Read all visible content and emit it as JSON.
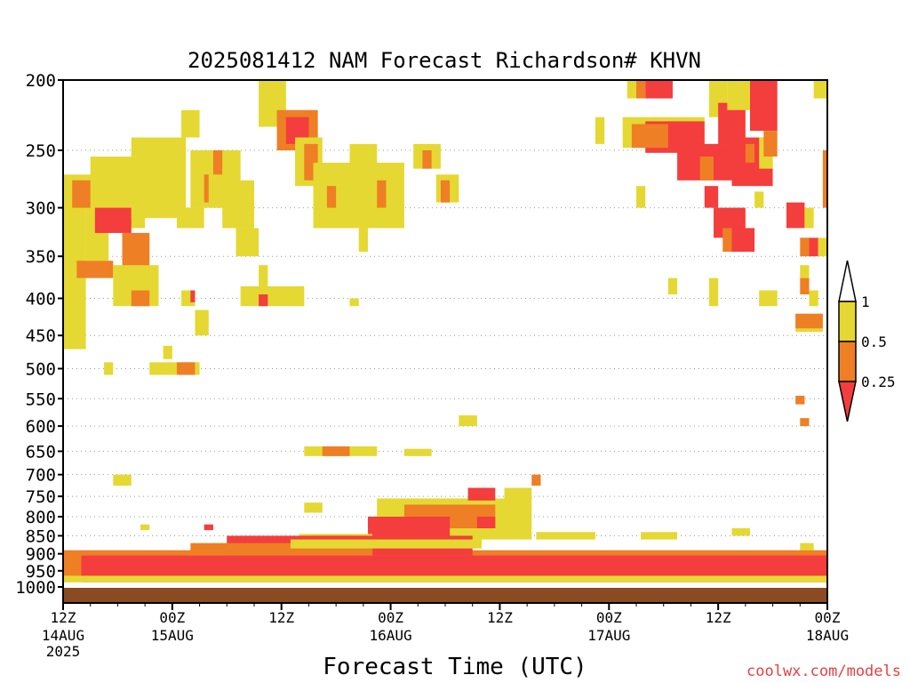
{
  "chart_data": {
    "type": "heatmap",
    "title": "2025081412 NAM Forecast Richardson# KHVN",
    "xlabel": "Forecast Time (UTC)",
    "ylabel": "",
    "watermark": "coolwx.com/models",
    "pressure_range_hPa": [
      200,
      1000
    ],
    "pressure_scale": "log",
    "y_ticks": [
      200,
      250,
      300,
      350,
      400,
      450,
      500,
      550,
      600,
      650,
      700,
      750,
      800,
      850,
      900,
      950,
      1000
    ],
    "y_tick_labels": [
      "200",
      "250",
      "300",
      "350",
      "400",
      "450",
      "500",
      "550",
      "600",
      "650",
      "700",
      "750",
      "800",
      "850",
      "900",
      "950",
      "1000"
    ],
    "x_range_hours": [
      0,
      84
    ],
    "x_ticks": [
      {
        "hour": 0,
        "top": "12Z",
        "mid": "14AUG",
        "bot": "2025"
      },
      {
        "hour": 12,
        "top": "00Z",
        "mid": "15AUG",
        "bot": ""
      },
      {
        "hour": 24,
        "top": "12Z",
        "mid": "",
        "bot": ""
      },
      {
        "hour": 36,
        "top": "00Z",
        "mid": "16AUG",
        "bot": ""
      },
      {
        "hour": 48,
        "top": "12Z",
        "mid": "",
        "bot": ""
      },
      {
        "hour": 60,
        "top": "00Z",
        "mid": "17AUG",
        "bot": ""
      },
      {
        "hour": 72,
        "top": "12Z",
        "mid": "",
        "bot": ""
      },
      {
        "hour": 84,
        "top": "00Z",
        "mid": "18AUG",
        "bot": ""
      }
    ],
    "legend": {
      "placement": "right",
      "bins": [
        {
          "range": "0.5-1",
          "color": "#e5d832"
        },
        {
          "range": "0.25-0.5",
          "color": "#ee7f25"
        },
        {
          "range": "<0.25",
          "color": "#f43d3d"
        }
      ],
      "labels": [
        "1",
        "0.5",
        "0.25"
      ]
    },
    "colors": {
      "yellow": "#e5d832",
      "orange": "#ee7f25",
      "red": "#f43d3d",
      "ground": "#8b4b22"
    },
    "regions": [
      {
        "category": "yellow",
        "t": [
          0.0,
          2.5
        ],
        "p": [
          270,
          470
        ]
      },
      {
        "category": "yellow",
        "t": [
          2.5,
          5.0
        ],
        "p": [
          270,
          355
        ]
      },
      {
        "category": "orange",
        "t": [
          1.2,
          3.5
        ],
        "p": [
          275,
          300
        ]
      },
      {
        "category": "orange",
        "t": [
          1.5,
          5.5
        ],
        "p": [
          355,
          375
        ]
      },
      {
        "category": "yellow",
        "t": [
          3.0,
          9.0
        ],
        "p": [
          255,
          320
        ]
      },
      {
        "category": "red",
        "t": [
          3.5,
          7.5
        ],
        "p": [
          300,
          325
        ]
      },
      {
        "category": "orange",
        "t": [
          6.5,
          9.5
        ],
        "p": [
          325,
          370
        ]
      },
      {
        "category": "yellow",
        "t": [
          5.5,
          10.5
        ],
        "p": [
          360,
          410
        ]
      },
      {
        "category": "orange",
        "t": [
          8.5,
          12.5
        ],
        "p": [
          245,
          300
        ]
      },
      {
        "category": "yellow",
        "t": [
          7.5,
          13.5
        ],
        "p": [
          240,
          310
        ]
      },
      {
        "category": "orange",
        "t": [
          7.5,
          9.5
        ],
        "p": [
          390,
          410
        ]
      },
      {
        "category": "yellow",
        "t": [
          12.5,
          15.5
        ],
        "p": [
          300,
          320
        ]
      },
      {
        "category": "yellow",
        "t": [
          13.0,
          15.0
        ],
        "p": [
          220,
          240
        ]
      },
      {
        "category": "yellow",
        "t": [
          14.0,
          17.5
        ],
        "p": [
          250,
          300
        ]
      },
      {
        "category": "orange",
        "t": [
          15.5,
          16.5
        ],
        "p": [
          270,
          295
        ]
      },
      {
        "category": "yellow",
        "t": [
          16.0,
          19.5
        ],
        "p": [
          250,
          300
        ]
      },
      {
        "category": "orange",
        "t": [
          16.5,
          17.5
        ],
        "p": [
          250,
          270
        ]
      },
      {
        "category": "yellow",
        "t": [
          17.5,
          21.0
        ],
        "p": [
          275,
          320
        ]
      },
      {
        "category": "yellow",
        "t": [
          19.0,
          21.5
        ],
        "p": [
          320,
          350
        ]
      },
      {
        "category": "yellow",
        "t": [
          13.0,
          14.5
        ],
        "p": [
          390,
          410
        ]
      },
      {
        "category": "red",
        "t": [
          13.8,
          14.5
        ],
        "p": [
          390,
          405
        ]
      },
      {
        "category": "yellow",
        "t": [
          14.5,
          16.0
        ],
        "p": [
          415,
          450
        ]
      },
      {
        "category": "yellow",
        "t": [
          9.5,
          15.0
        ],
        "p": [
          490,
          510
        ]
      },
      {
        "category": "orange",
        "t": [
          12.5,
          14.5
        ],
        "p": [
          490,
          510
        ]
      },
      {
        "category": "yellow",
        "t": [
          11.0,
          11.8
        ],
        "p": [
          465,
          485
        ]
      },
      {
        "category": "yellow",
        "t": [
          4.5,
          5.5
        ],
        "p": [
          490,
          510
        ]
      },
      {
        "category": "yellow",
        "t": [
          19.5,
          26.5
        ],
        "p": [
          385,
          410
        ]
      },
      {
        "category": "red",
        "t": [
          21.5,
          22.5
        ],
        "p": [
          395,
          410
        ]
      },
      {
        "category": "yellow",
        "t": [
          21.5,
          22.5
        ],
        "p": [
          360,
          385
        ]
      },
      {
        "category": "yellow",
        "t": [
          21.5,
          24.5
        ],
        "p": [
          200,
          232
        ]
      },
      {
        "category": "orange",
        "t": [
          23.5,
          28.0
        ],
        "p": [
          220,
          250
        ]
      },
      {
        "category": "red",
        "t": [
          24.5,
          27.0
        ],
        "p": [
          225,
          245
        ]
      },
      {
        "category": "yellow",
        "t": [
          25.5,
          28.5
        ],
        "p": [
          240,
          280
        ]
      },
      {
        "category": "orange",
        "t": [
          26.5,
          28.0
        ],
        "p": [
          245,
          275
        ]
      },
      {
        "category": "yellow",
        "t": [
          27.5,
          37.5
        ],
        "p": [
          260,
          320
        ]
      },
      {
        "category": "orange",
        "t": [
          29.0,
          30.0
        ],
        "p": [
          280,
          300
        ]
      },
      {
        "category": "yellow",
        "t": [
          31.5,
          34.5
        ],
        "p": [
          245,
          275
        ]
      },
      {
        "category": "orange",
        "t": [
          34.5,
          35.5
        ],
        "p": [
          275,
          300
        ]
      },
      {
        "category": "yellow",
        "t": [
          32.5,
          33.5
        ],
        "p": [
          320,
          345
        ]
      },
      {
        "category": "yellow",
        "t": [
          38.5,
          41.5
        ],
        "p": [
          245,
          265
        ]
      },
      {
        "category": "orange",
        "t": [
          39.5,
          40.5
        ],
        "p": [
          250,
          265
        ]
      },
      {
        "category": "yellow",
        "t": [
          41.0,
          43.5
        ],
        "p": [
          270,
          295
        ]
      },
      {
        "category": "orange",
        "t": [
          41.5,
          42.5
        ],
        "p": [
          275,
          295
        ]
      },
      {
        "category": "yellow",
        "t": [
          31.5,
          32.5
        ],
        "p": [
          400,
          410
        ]
      },
      {
        "category": "yellow",
        "t": [
          58.5,
          59.5
        ],
        "p": [
          225,
          245
        ]
      },
      {
        "category": "yellow",
        "t": [
          62.0,
          63.0
        ],
        "p": [
          200,
          212
        ]
      },
      {
        "category": "orange",
        "t": [
          63.0,
          64.0
        ],
        "p": [
          200,
          212
        ]
      },
      {
        "category": "red",
        "t": [
          64.0,
          67.0
        ],
        "p": [
          200,
          212
        ]
      },
      {
        "category": "yellow",
        "t": [
          61.5,
          70.5
        ],
        "p": [
          225,
          248
        ]
      },
      {
        "category": "red",
        "t": [
          64.0,
          70.5
        ],
        "p": [
          228,
          252
        ]
      },
      {
        "category": "orange",
        "t": [
          62.5,
          66.5
        ],
        "p": [
          230,
          248
        ]
      },
      {
        "category": "red",
        "t": [
          67.5,
          75.0
        ],
        "p": [
          245,
          275
        ]
      },
      {
        "category": "orange",
        "t": [
          70.0,
          71.5
        ],
        "p": [
          255,
          275
        ]
      },
      {
        "category": "red",
        "t": [
          70.5,
          72.0
        ],
        "p": [
          280,
          300
        ]
      },
      {
        "category": "yellow",
        "t": [
          71.0,
          73.0
        ],
        "p": [
          200,
          225
        ]
      },
      {
        "category": "red",
        "t": [
          72.0,
          75.0
        ],
        "p": [
          215,
          250
        ]
      },
      {
        "category": "yellow",
        "t": [
          73.0,
          77.0
        ],
        "p": [
          200,
          220
        ]
      },
      {
        "category": "red",
        "t": [
          75.5,
          78.5
        ],
        "p": [
          200,
          235
        ]
      },
      {
        "category": "red",
        "t": [
          73.5,
          78.0
        ],
        "p": [
          240,
          280
        ]
      },
      {
        "category": "orange",
        "t": [
          75.0,
          76.0
        ],
        "p": [
          245,
          260
        ]
      },
      {
        "category": "yellow",
        "t": [
          76.5,
          78.0
        ],
        "p": [
          240,
          265
        ]
      },
      {
        "category": "orange",
        "t": [
          77.0,
          78.5
        ],
        "p": [
          235,
          255
        ]
      },
      {
        "category": "red",
        "t": [
          71.5,
          75.0
        ],
        "p": [
          300,
          330
        ]
      },
      {
        "category": "orange",
        "t": [
          72.5,
          73.5
        ],
        "p": [
          320,
          345
        ]
      },
      {
        "category": "red",
        "t": [
          73.5,
          76.0
        ],
        "p": [
          320,
          345
        ]
      },
      {
        "category": "yellow",
        "t": [
          76.0,
          77.0
        ],
        "p": [
          285,
          300
        ]
      },
      {
        "category": "red",
        "t": [
          79.5,
          81.5
        ],
        "p": [
          295,
          320
        ]
      },
      {
        "category": "yellow",
        "t": [
          81.5,
          82.5
        ],
        "p": [
          300,
          320
        ]
      },
      {
        "category": "orange",
        "t": [
          81.0,
          82.0
        ],
        "p": [
          330,
          350
        ]
      },
      {
        "category": "red",
        "t": [
          82.0,
          83.0
        ],
        "p": [
          330,
          350
        ]
      },
      {
        "category": "yellow",
        "t": [
          81.0,
          82.0
        ],
        "p": [
          360,
          375
        ]
      },
      {
        "category": "orange",
        "t": [
          81.0,
          82.0
        ],
        "p": [
          375,
          395
        ]
      },
      {
        "category": "yellow",
        "t": [
          82.0,
          83.0
        ],
        "p": [
          390,
          410
        ]
      },
      {
        "category": "yellow",
        "t": [
          80.5,
          83.5
        ],
        "p": [
          420,
          445
        ]
      },
      {
        "category": "orange",
        "t": [
          80.5,
          83.5
        ],
        "p": [
          420,
          440
        ]
      },
      {
        "category": "orange",
        "t": [
          83.5,
          84.0
        ],
        "p": [
          250,
          300
        ]
      },
      {
        "category": "yellow",
        "t": [
          83.0,
          84.0
        ],
        "p": [
          330,
          350
        ]
      },
      {
        "category": "yellow",
        "t": [
          82.5,
          84.0
        ],
        "p": [
          200,
          212
        ]
      },
      {
        "category": "yellow",
        "t": [
          71.0,
          72.0
        ],
        "p": [
          375,
          410
        ]
      },
      {
        "category": "yellow",
        "t": [
          66.5,
          67.5
        ],
        "p": [
          375,
          395
        ]
      },
      {
        "category": "yellow",
        "t": [
          76.5,
          78.5
        ],
        "p": [
          390,
          410
        ]
      },
      {
        "category": "yellow",
        "t": [
          63.0,
          64.0
        ],
        "p": [
          280,
          300
        ]
      },
      {
        "category": "orange",
        "t": [
          80.5,
          81.5
        ],
        "p": [
          545,
          560
        ]
      },
      {
        "category": "orange",
        "t": [
          81.0,
          82.0
        ],
        "p": [
          585,
          600
        ]
      },
      {
        "category": "yellow",
        "t": [
          43.5,
          45.5
        ],
        "p": [
          580,
          600
        ]
      },
      {
        "category": "yellow",
        "t": [
          26.5,
          34.5
        ],
        "p": [
          640,
          660
        ]
      },
      {
        "category": "orange",
        "t": [
          28.5,
          31.5
        ],
        "p": [
          640,
          660
        ]
      },
      {
        "category": "yellow",
        "t": [
          37.5,
          40.5
        ],
        "p": [
          645,
          660
        ]
      },
      {
        "category": "yellow",
        "t": [
          5.5,
          7.5
        ],
        "p": [
          700,
          725
        ]
      },
      {
        "category": "orange",
        "t": [
          51.5,
          52.5
        ],
        "p": [
          700,
          725
        ]
      },
      {
        "category": "yellow",
        "t": [
          26.5,
          28.5
        ],
        "p": [
          765,
          790
        ]
      },
      {
        "category": "yellow",
        "t": [
          34.5,
          51.5
        ],
        "p": [
          755,
          860
        ]
      },
      {
        "category": "orange",
        "t": [
          37.5,
          47.5
        ],
        "p": [
          770,
          830
        ]
      },
      {
        "category": "red",
        "t": [
          44.5,
          47.5
        ],
        "p": [
          730,
          760
        ]
      },
      {
        "category": "red",
        "t": [
          33.5,
          42.5
        ],
        "p": [
          800,
          860
        ]
      },
      {
        "category": "red",
        "t": [
          45.5,
          47.5
        ],
        "p": [
          800,
          830
        ]
      },
      {
        "category": "yellow",
        "t": [
          48.5,
          51.5
        ],
        "p": [
          730,
          760
        ]
      },
      {
        "category": "yellow",
        "t": [
          26.0,
          34.0
        ],
        "p": [
          845,
          870
        ]
      },
      {
        "category": "yellow",
        "t": [
          52.0,
          58.5
        ],
        "p": [
          840,
          860
        ]
      },
      {
        "category": "yellow",
        "t": [
          63.5,
          67.5
        ],
        "p": [
          840,
          860
        ]
      },
      {
        "category": "yellow",
        "t": [
          73.5,
          75.5
        ],
        "p": [
          830,
          850
        ]
      },
      {
        "category": "yellow",
        "t": [
          81.0,
          82.5
        ],
        "p": [
          870,
          890
        ]
      },
      {
        "category": "yellow",
        "t": [
          8.5,
          9.5
        ],
        "p": [
          820,
          835
        ]
      },
      {
        "category": "red",
        "t": [
          15.5,
          16.5
        ],
        "p": [
          820,
          835
        ]
      },
      {
        "category": "orange",
        "t": [
          0.0,
          84.0
        ],
        "p": [
          890,
          985
        ]
      },
      {
        "category": "red",
        "t": [
          2.0,
          84.0
        ],
        "p": [
          905,
          985
        ]
      },
      {
        "category": "yellow",
        "t": [
          0.0,
          84.0
        ],
        "p": [
          965,
          985
        ]
      },
      {
        "category": "red",
        "t": [
          18.0,
          45.0
        ],
        "p": [
          850,
          905
        ]
      },
      {
        "category": "orange",
        "t": [
          14.0,
          34.0
        ],
        "p": [
          870,
          905
        ]
      },
      {
        "category": "yellow",
        "t": [
          25.0,
          46.0
        ],
        "p": [
          860,
          885
        ]
      }
    ]
  }
}
